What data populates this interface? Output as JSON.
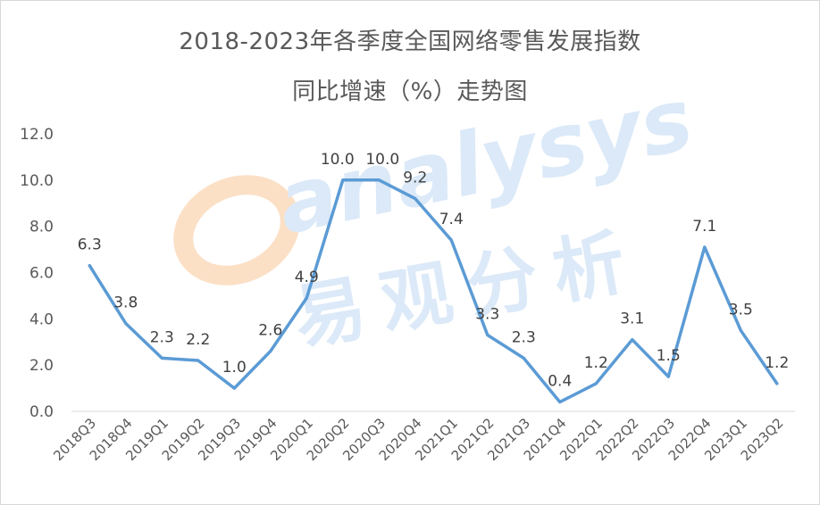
{
  "title_line1": "2018-2023年各季度全国网络零售发展指数",
  "title_line2": "同比增速（%）走势图",
  "watermark": {
    "latin": "analysys",
    "cjk": "易观分析"
  },
  "colors": {
    "line": "#5b9bd5",
    "text": "#595959",
    "watermark_blue": "#b7d3f0",
    "watermark_orange": "#f8c9a0"
  },
  "chart_data": {
    "type": "line",
    "title": "2018-2023年各季度全国网络零售发展指数同比增速（%）走势图",
    "xlabel": "",
    "ylabel": "",
    "categories": [
      "2018Q3",
      "2018Q4",
      "2019Q1",
      "2019Q2",
      "2019Q3",
      "2019Q4",
      "2020Q1",
      "2020Q2",
      "2020Q3",
      "2020Q4",
      "2021Q1",
      "2021Q2",
      "2021Q3",
      "2021Q4",
      "2022Q1",
      "2022Q2",
      "2022Q3",
      "2022Q4",
      "2023Q1",
      "2023Q2"
    ],
    "values": [
      6.3,
      3.8,
      2.3,
      2.2,
      1.0,
      2.6,
      4.9,
      10.0,
      10.0,
      9.2,
      7.4,
      3.3,
      2.3,
      0.4,
      1.2,
      3.1,
      1.5,
      7.1,
      3.5,
      1.2
    ],
    "ylim": [
      0,
      12
    ],
    "yticks": [
      "0.0",
      "2.0",
      "4.0",
      "6.0",
      "8.0",
      "10.0",
      "12.0"
    ],
    "grid": false,
    "legend": "none"
  }
}
